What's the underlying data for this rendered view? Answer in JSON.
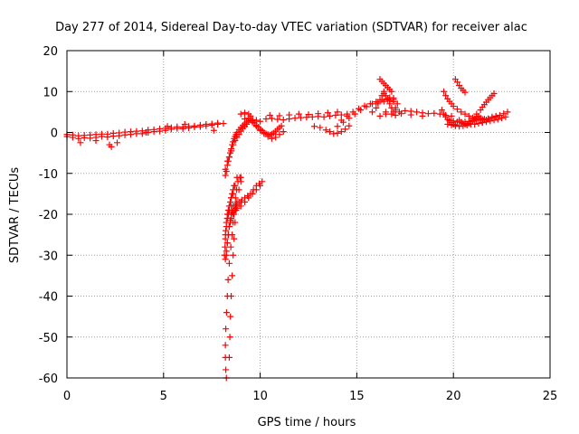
{
  "chart_data": {
    "type": "scatter",
    "title": "Day 277 of 2014, Sidereal Day-to-day VTEC variation (SDTVAR) for receiver alac",
    "xlabel": "GPS time / hours",
    "ylabel": "SDTVAR / TECUs",
    "xlim": [
      0,
      25
    ],
    "ylim": [
      -60,
      20
    ],
    "xticks": [
      0,
      5,
      10,
      15,
      20,
      25
    ],
    "yticks": [
      -60,
      -50,
      -40,
      -30,
      -20,
      -10,
      0,
      10,
      20
    ],
    "xtick_labels": [
      "0",
      "5",
      "10",
      "15",
      "20",
      "25"
    ],
    "ytick_labels": [
      "-60",
      "-50",
      "-40",
      "-30",
      "-20",
      "-10",
      "0",
      "10",
      "20"
    ],
    "grid": true,
    "marker": "+",
    "color": "#ff0000",
    "series": [
      {
        "name": "early-low",
        "x": [
          0,
          0.3,
          0.6,
          0.9,
          1.2,
          1.5,
          1.8,
          2.1,
          2.4,
          2.7,
          3.0,
          3.3,
          3.6,
          3.9,
          4.2,
          4.5,
          4.8,
          5.1,
          5.4,
          5.7,
          6.0,
          6.3,
          6.6,
          6.9,
          7.2,
          7.5,
          7.8,
          8.1
        ],
        "y": [
          -1,
          -1.2,
          -1.5,
          -1.3,
          -1.4,
          -1.2,
          -1.0,
          -1.1,
          -0.9,
          -0.8,
          -0.6,
          -0.5,
          -0.3,
          -0.3,
          0,
          0.2,
          0.3,
          0.5,
          0.8,
          1.0,
          0.9,
          1.1,
          1.3,
          1.4,
          1.6,
          1.8,
          2.0,
          2.2
        ]
      },
      {
        "name": "early-high",
        "x": [
          0,
          0.3,
          0.6,
          0.9,
          1.2,
          1.5,
          1.8,
          2.1,
          2.4,
          2.7,
          3.0,
          3.3,
          3.6,
          3.9,
          4.2,
          4.5,
          4.8,
          5.1,
          5.4,
          5.7,
          6.0,
          6.3,
          6.6,
          6.9,
          7.2,
          7.5,
          7.8
        ],
        "y": [
          -0.5,
          -0.6,
          -0.8,
          -0.7,
          -0.6,
          -0.5,
          -0.4,
          -0.4,
          -0.2,
          -0.1,
          0.1,
          0.2,
          0.3,
          0.4,
          0.6,
          0.7,
          0.9,
          1.0,
          1.2,
          1.4,
          1.3,
          1.5,
          1.6,
          1.8,
          2.0,
          2.1,
          2.3
        ]
      },
      {
        "name": "scatter-early",
        "x": [
          0.7,
          1.5,
          2.3,
          2.2,
          2.6,
          4.1,
          5.2,
          6.1,
          7.6
        ],
        "y": [
          -2.5,
          -2,
          -3.5,
          -3,
          -2.5,
          0,
          1.5,
          2,
          0.5
        ]
      },
      {
        "name": "plunge-deep",
        "x": [
          8.25,
          8.22,
          8.2,
          8.2,
          8.22,
          8.26,
          8.3,
          8.34,
          8.4,
          8.48,
          8.55,
          8.6,
          8.65,
          8.7,
          8.72,
          8.78,
          8.85,
          8.95,
          9.0
        ],
        "y": [
          -60,
          -58,
          -55,
          -52,
          -48,
          -44,
          -40,
          -36,
          -32,
          -28,
          -25,
          -22,
          -20,
          -18,
          -16,
          -14,
          -12,
          -11,
          -11
        ]
      },
      {
        "name": "plunge-mid",
        "x": [
          8.4,
          8.43,
          8.46,
          8.5,
          8.55,
          8.6,
          8.65,
          8.7,
          8.75,
          8.8,
          8.9,
          9.0
        ],
        "y": [
          -55,
          -50,
          -45,
          -40,
          -35,
          -30,
          -26,
          -22,
          -19,
          -17,
          -14,
          -12
        ]
      },
      {
        "name": "plunge-band-a",
        "x": [
          8.15,
          8.18,
          8.2,
          8.22,
          8.25,
          8.3,
          8.35,
          8.4,
          8.5,
          8.6,
          8.75,
          8.9,
          9.05,
          9.2,
          9.35,
          9.5,
          9.65,
          9.8,
          9.95,
          10.1
        ],
        "y": [
          -30,
          -28,
          -26,
          -24,
          -22,
          -21,
          -20,
          -19,
          -18,
          -18,
          -17.5,
          -17,
          -16.5,
          -16,
          -15.5,
          -15,
          -14,
          -13,
          -12.5,
          -12
        ]
      },
      {
        "name": "plunge-band-b",
        "x": [
          8.2,
          8.25,
          8.3,
          8.35,
          8.4,
          8.45,
          8.5,
          8.6,
          8.7,
          8.8,
          9.0,
          9.2,
          9.4,
          9.6,
          9.8,
          10.0
        ],
        "y": [
          -31,
          -29,
          -27,
          -25,
          -23,
          -22,
          -21,
          -20,
          -19,
          -18.5,
          -18,
          -17,
          -16,
          -15,
          -14,
          -13
        ]
      },
      {
        "name": "plunge-band-c",
        "x": [
          8.25,
          8.3,
          8.35,
          8.4,
          8.45,
          8.5,
          8.55,
          8.6,
          8.7,
          8.8,
          8.9,
          9.0
        ],
        "y": [
          -30,
          -27,
          -25,
          -23,
          -21.5,
          -20,
          -19.5,
          -19,
          -18.5,
          -18,
          -17.5,
          -17
        ]
      },
      {
        "name": "plunge-band-d",
        "x": [
          8.2,
          8.25,
          8.3,
          8.35,
          8.4,
          8.45,
          8.5,
          8.55,
          8.6,
          8.65
        ],
        "y": [
          -25,
          -23,
          -21,
          -19,
          -18,
          -17,
          -16,
          -15,
          -14,
          -13
        ]
      },
      {
        "name": "plunge-band-e",
        "x": [
          8.3,
          8.4,
          8.5,
          8.6,
          8.7,
          8.8
        ],
        "y": [
          -20,
          -18,
          -16,
          -15,
          -13,
          -11
        ]
      },
      {
        "name": "rebound",
        "x": [
          8.2,
          8.25,
          8.3,
          8.35,
          8.4,
          8.45,
          8.5,
          8.55,
          8.6,
          8.65,
          8.7,
          8.75,
          8.8,
          8.9,
          9.0,
          9.1,
          9.2,
          9.3,
          9.4,
          9.5,
          9.6
        ],
        "y": [
          -10.5,
          -9.5,
          -8,
          -7,
          -6,
          -5,
          -4,
          -3,
          -2.3,
          -1.5,
          -1,
          -0.5,
          0,
          0.7,
          1.2,
          1.7,
          2.1,
          2.5,
          2.8,
          3.0,
          3.1
        ]
      },
      {
        "name": "rebound-2",
        "x": [
          8.2,
          8.3,
          8.4,
          8.5,
          8.6,
          8.7,
          8.8,
          8.9,
          9.0,
          9.1,
          9.2,
          9.3
        ],
        "y": [
          -9,
          -7,
          -6,
          -4.5,
          -3,
          -2,
          -1.2,
          -0.5,
          0.3,
          1,
          1.5,
          2
        ]
      },
      {
        "name": "lobe-upper",
        "x": [
          9.6,
          9.7,
          9.8,
          9.9,
          10.0,
          10.1,
          10.2,
          10.3,
          10.4,
          10.5,
          10.6,
          10.7,
          10.8,
          10.9,
          11.0,
          11.1
        ],
        "y": [
          2.8,
          2.3,
          1.8,
          1.3,
          0.8,
          0.4,
          0.0,
          -0.3,
          -0.5,
          -0.6,
          -0.4,
          -0.1,
          0.3,
          0.8,
          1.2,
          1.6
        ]
      },
      {
        "name": "lobe-lower",
        "x": [
          9.4,
          9.6,
          9.8,
          10.0,
          10.2,
          10.4,
          10.6,
          10.8,
          11.0,
          11.2
        ],
        "y": [
          3.5,
          2.5,
          1.5,
          0.5,
          -0.3,
          -1.0,
          -1.5,
          -1.2,
          -0.5,
          0.2
        ]
      },
      {
        "name": "mid-plateau",
        "x": [
          9.2,
          9.5,
          9.8,
          10.0,
          10.3,
          10.6,
          10.9,
          11.2,
          11.5,
          11.8,
          12.1,
          12.4,
          12.7,
          13.0,
          13.3,
          13.6,
          13.9,
          14.2,
          14.5
        ],
        "y": [
          3.3,
          3.5,
          3.0,
          2.7,
          3.3,
          3.4,
          3.2,
          3.1,
          3.3,
          3.5,
          3.6,
          3.7,
          3.8,
          3.9,
          3.8,
          4.0,
          4.2,
          4.3,
          4.5
        ]
      },
      {
        "name": "mid-high",
        "x": [
          9.0,
          9.2,
          9.4,
          9.5,
          10.5,
          11.0,
          11.5,
          12.0,
          12.5,
          13.0,
          13.5,
          14.0
        ],
        "y": [
          4.5,
          4.8,
          4.5,
          4.0,
          4.2,
          4.1,
          4.3,
          4.5,
          4.4,
          4.6,
          4.8,
          5.0
        ]
      },
      {
        "name": "sag-14",
        "x": [
          12.8,
          13.1,
          13.4,
          13.6,
          13.8,
          14.0,
          14.2,
          14.4,
          14.6
        ],
        "y": [
          1.5,
          1.2,
          0.6,
          0.2,
          -0.3,
          -0.2,
          0.2,
          0.8,
          1.6
        ]
      },
      {
        "name": "rise-15",
        "x": [
          14.0,
          14.3,
          14.6,
          14.9,
          15.2,
          15.5,
          15.8,
          16.1,
          16.4,
          16.7,
          16.9
        ],
        "y": [
          1.5,
          2.5,
          3.5,
          4.5,
          5.5,
          6.3,
          7.0,
          7.4,
          7.6,
          7.8,
          8.0
        ]
      },
      {
        "name": "rise-15b",
        "x": [
          14.2,
          14.5,
          14.8,
          15.1,
          15.4,
          15.7,
          16.0,
          16.3,
          16.6,
          16.9
        ],
        "y": [
          3,
          4,
          5,
          5.8,
          6.5,
          7.0,
          7.5,
          8.0,
          8.2,
          8.4
        ]
      },
      {
        "name": "cluster-16",
        "x": [
          15.8,
          16.0,
          16.1,
          16.2,
          16.3,
          16.4,
          16.5,
          16.6,
          16.7,
          16.8,
          16.9,
          17.0,
          17.1,
          16.2,
          16.5,
          16.8,
          17.0,
          16.4,
          16.7,
          16.9
        ],
        "y": [
          5,
          6,
          7,
          8,
          9,
          10,
          9,
          8,
          7,
          6,
          5,
          6,
          7,
          4,
          5,
          4.5,
          5.5,
          9.5,
          8.5,
          7.5
        ]
      },
      {
        "name": "spike-16",
        "x": [
          16.2,
          16.3,
          16.4,
          16.5,
          16.6,
          16.7,
          16.8
        ],
        "y": [
          13,
          12.5,
          12,
          11.5,
          11,
          10.5,
          10
        ]
      },
      {
        "name": "band-17-20",
        "x": [
          17.2,
          17.5,
          17.8,
          18.1,
          18.4,
          18.7,
          19.0,
          19.3,
          19.6,
          19.9
        ],
        "y": [
          5,
          5.3,
          5.2,
          5.0,
          4.8,
          4.6,
          4.7,
          4.5,
          4.2,
          4.0
        ]
      },
      {
        "name": "scatter-17",
        "x": [
          16.5,
          17.0,
          17.3,
          17.8,
          18.4
        ],
        "y": [
          4.5,
          4.2,
          4.6,
          4.3,
          4.0
        ]
      },
      {
        "name": "drop-19-20",
        "x": [
          19.4,
          19.5,
          19.6,
          19.7,
          19.8,
          19.9,
          20.0,
          20.1
        ],
        "y": [
          5.5,
          4.5,
          3.8,
          3.2,
          2.8,
          2.4,
          2.0,
          1.8
        ]
      },
      {
        "name": "floor-20",
        "x": [
          19.7,
          19.9,
          20.1,
          20.3,
          20.5,
          20.7,
          20.9,
          21.1,
          21.3,
          21.5
        ],
        "y": [
          2.0,
          1.8,
          1.6,
          1.5,
          1.6,
          1.8,
          2.0,
          2.0,
          2.2,
          2.4
        ]
      },
      {
        "name": "floor-20b",
        "x": [
          19.8,
          20.0,
          20.2,
          20.4,
          20.6,
          20.8,
          21.0,
          21.2,
          21.4,
          21.6
        ],
        "y": [
          3.0,
          2.8,
          2.6,
          2.5,
          2.6,
          2.7,
          2.8,
          3.0,
          3.1,
          3.3
        ]
      },
      {
        "name": "arc-19",
        "x": [
          19.5,
          19.6,
          19.7,
          19.8,
          19.9,
          20.0,
          20.2,
          20.4,
          20.6,
          20.8,
          21.0
        ],
        "y": [
          10,
          9,
          8.2,
          7.6,
          7.0,
          6.4,
          5.7,
          5.0,
          4.5,
          4.0,
          3.6
        ]
      },
      {
        "name": "spike-20",
        "x": [
          20.1,
          20.2,
          20.3,
          20.4,
          20.5,
          20.6
        ],
        "y": [
          13,
          12.3,
          11.5,
          10.8,
          10.3,
          9.8
        ]
      },
      {
        "name": "arc-21",
        "x": [
          21.4,
          21.5,
          21.6,
          21.7,
          21.8,
          21.9,
          22.0,
          22.1
        ],
        "y": [
          5.5,
          6.2,
          6.8,
          7.4,
          8.0,
          8.5,
          9.0,
          9.5
        ]
      },
      {
        "name": "tail-21-22",
        "x": [
          21.0,
          21.2,
          21.4,
          21.6,
          21.8,
          22.0,
          22.2,
          22.4,
          22.6,
          22.8
        ],
        "y": [
          3.5,
          3.2,
          3.0,
          3.1,
          3.3,
          3.5,
          3.8,
          4.2,
          4.6,
          5.0
        ]
      },
      {
        "name": "tail-21-22b",
        "x": [
          21.5,
          21.7,
          21.9,
          22.1,
          22.3,
          22.5,
          22.7
        ],
        "y": [
          2.5,
          2.6,
          2.8,
          3.0,
          3.2,
          3.5,
          3.8
        ]
      },
      {
        "name": "hook-20-21",
        "x": [
          20.3,
          20.4,
          20.5,
          20.6,
          20.7,
          20.8,
          20.9,
          21.0,
          21.1,
          21.2
        ],
        "y": [
          3.0,
          2.5,
          2.2,
          2.0,
          2.0,
          2.2,
          2.6,
          3.0,
          3.4,
          3.8
        ]
      },
      {
        "name": "hook-21",
        "x": [
          21.2,
          21.3,
          21.4,
          21.5,
          21.6,
          21.7,
          21.8,
          22.0,
          22.2
        ],
        "y": [
          4.5,
          4.0,
          3.5,
          3.2,
          3.0,
          3.1,
          3.4,
          3.8,
          4.0
        ]
      }
    ]
  }
}
